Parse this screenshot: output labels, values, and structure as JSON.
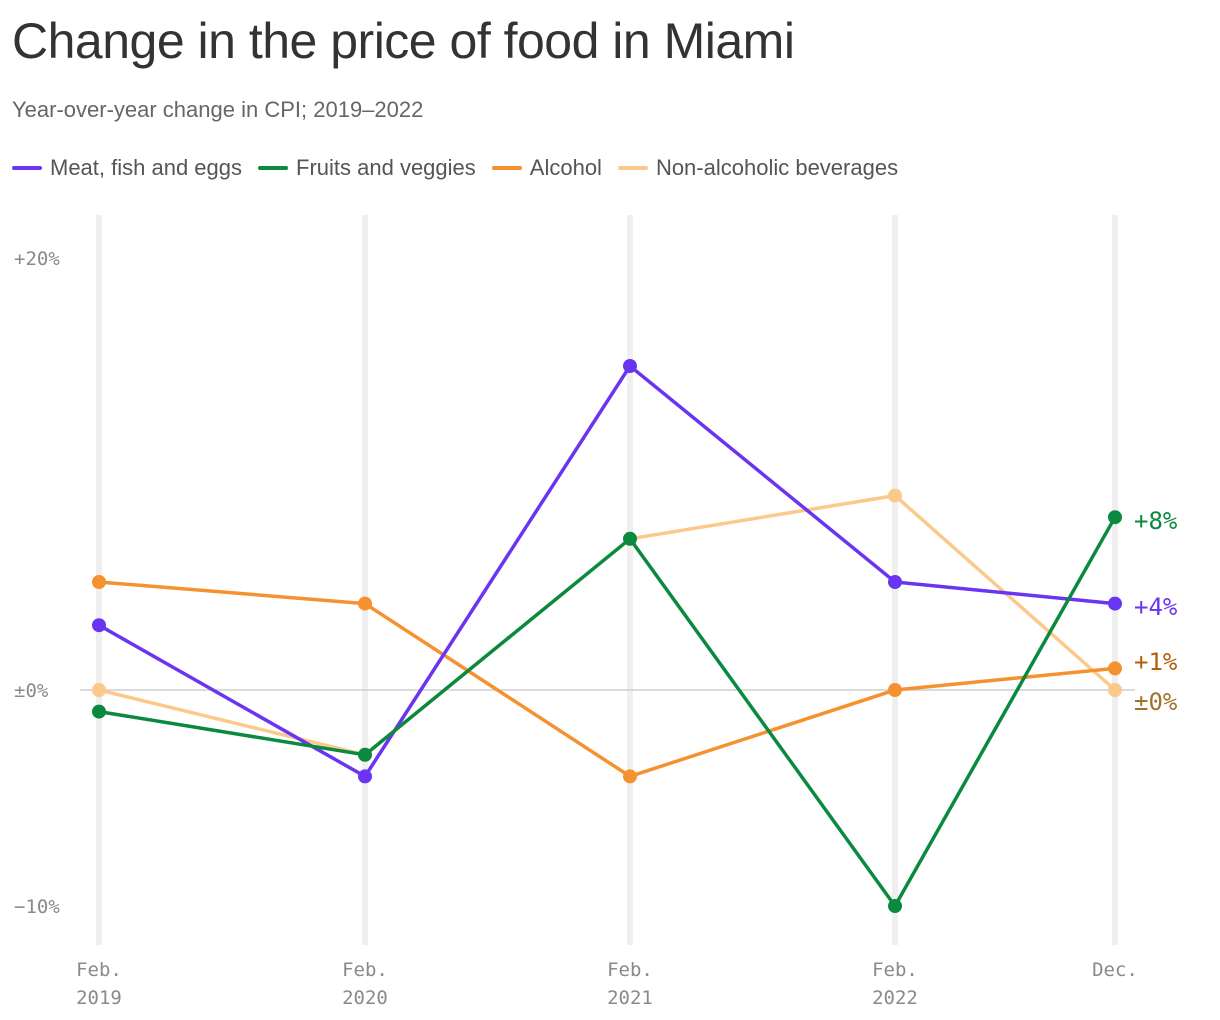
{
  "title": "Change in the price of food in Miami",
  "subtitle": "Year-over-year change in CPI; 2019–2022",
  "colors": {
    "meat": "#6a35f0",
    "fruits": "#0a8a3e",
    "alcohol": "#f5922f",
    "beverages": "#fbc98a",
    "end_label_neutral": "#a0722a",
    "end_label_alcohol": "#b35f0c"
  },
  "chart_data": {
    "type": "line",
    "title": "Change in the price of food in Miami",
    "subtitle": "Year-over-year change in CPI; 2019–2022",
    "x": [
      [
        "Feb.",
        "2019"
      ],
      [
        "Feb.",
        "2020"
      ],
      [
        "Feb.",
        "2021"
      ],
      [
        "Feb.",
        "2022"
      ],
      [
        "Dec.",
        ""
      ]
    ],
    "y_ticks": [
      {
        "value": 20,
        "label": "+20%"
      },
      {
        "value": 0,
        "label": "±0%"
      },
      {
        "value": -10,
        "label": "−10%"
      }
    ],
    "ylim": [
      -11.5,
      22
    ],
    "grid": "vertical lines at each date",
    "legend_position": "top-left",
    "series": [
      {
        "key": "beverages",
        "name": "Non-alcoholic beverages",
        "values": [
          0,
          -3,
          7,
          9,
          0
        ],
        "end_label": "±0%"
      },
      {
        "key": "alcohol",
        "name": "Alcohol",
        "values": [
          5,
          4,
          -4,
          0,
          1
        ],
        "end_label": "+1%"
      },
      {
        "key": "meat",
        "name": "Meat, fish and eggs",
        "values": [
          3,
          -4,
          15,
          5,
          4
        ],
        "end_label": "+4%"
      },
      {
        "key": "fruits",
        "name": "Fruits and veggies",
        "values": [
          -1,
          -3,
          7,
          -10,
          8
        ],
        "end_label": "+8%"
      }
    ],
    "legend_order": [
      "meat",
      "fruits",
      "alcohol",
      "beverages"
    ]
  }
}
